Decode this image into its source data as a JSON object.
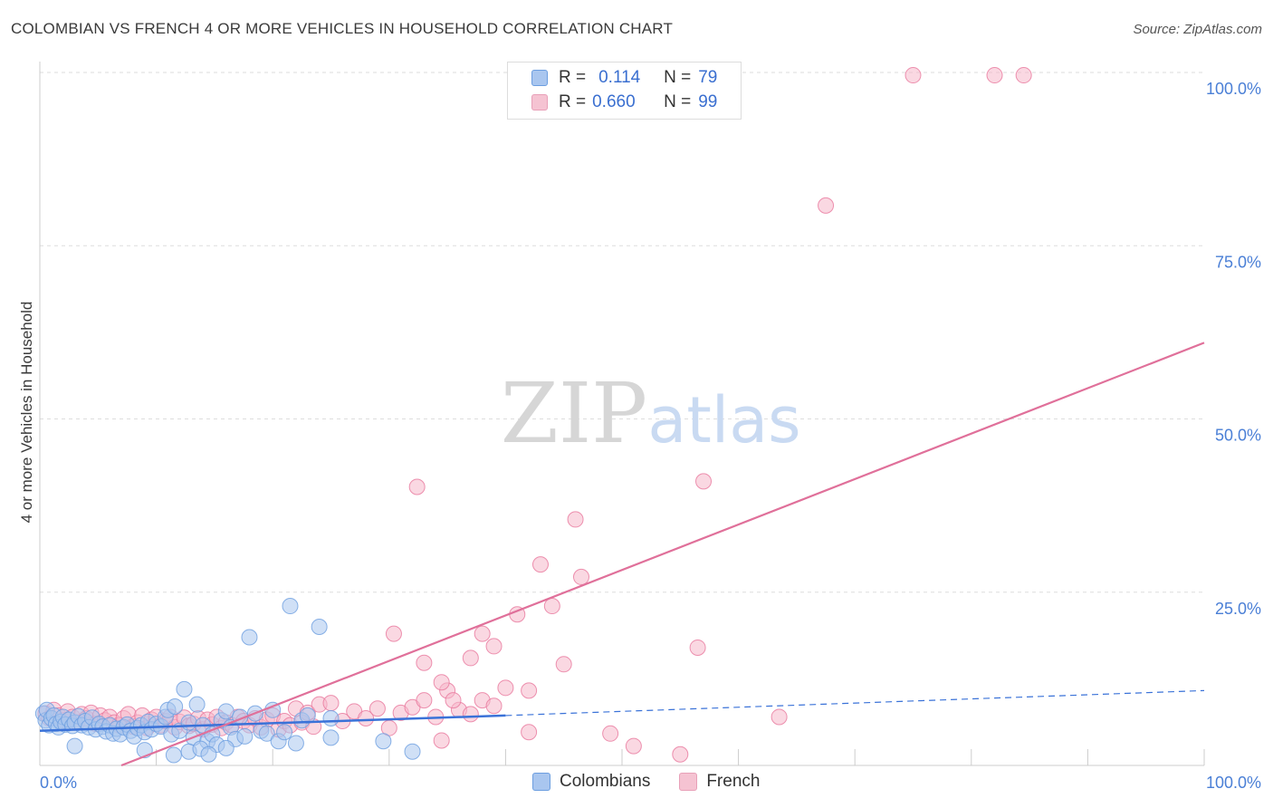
{
  "chart_data": {
    "type": "scatter",
    "title": "COLOMBIAN VS FRENCH 4 OR MORE VEHICLES IN HOUSEHOLD CORRELATION CHART",
    "source": "Source: ZipAtlas.com",
    "ylabel": "4 or more Vehicles in Household",
    "xlabel": "",
    "xlim": [
      0,
      100
    ],
    "ylim": [
      0,
      100
    ],
    "x_tick_labels": [
      "0.0%",
      "100.0%"
    ],
    "y_tick_labels": [
      "25.0%",
      "50.0%",
      "75.0%",
      "100.0%"
    ],
    "y_ticks": [
      25,
      50,
      75,
      100
    ],
    "watermark": {
      "part1": "ZIP",
      "part2": "atlas"
    },
    "legend": [
      {
        "r_label": "R =",
        "r_value": "0.114",
        "n_label": "N =",
        "n_value": "79"
      },
      {
        "r_label": "R =",
        "r_value": "0.660",
        "n_label": "N =",
        "n_value": "99"
      }
    ],
    "series": [
      {
        "name": "Colombians",
        "color": "#6c9ee0",
        "fill": "#a9c6ef",
        "trend": {
          "x0": 0,
          "y0": 5.0,
          "x1": 40,
          "y1": 7.2,
          "dash_to_x": 100,
          "dash_to_y": 10.8
        },
        "points": [
          [
            0.3,
            7.5
          ],
          [
            0.5,
            6.5
          ],
          [
            0.6,
            8.0
          ],
          [
            0.8,
            5.8
          ],
          [
            1.0,
            6.8
          ],
          [
            1.2,
            7.2
          ],
          [
            1.4,
            6.0
          ],
          [
            1.6,
            5.5
          ],
          [
            1.8,
            6.3
          ],
          [
            2.0,
            7.0
          ],
          [
            2.2,
            5.9
          ],
          [
            2.5,
            6.6
          ],
          [
            2.8,
            5.7
          ],
          [
            3.0,
            6.2
          ],
          [
            3.3,
            7.1
          ],
          [
            3.6,
            5.8
          ],
          [
            3.9,
            6.4
          ],
          [
            4.2,
            5.5
          ],
          [
            4.5,
            6.9
          ],
          [
            4.8,
            5.2
          ],
          [
            5.1,
            6.0
          ],
          [
            5.4,
            5.6
          ],
          [
            5.7,
            4.9
          ],
          [
            6.0,
            5.8
          ],
          [
            6.3,
            4.6
          ],
          [
            6.6,
            5.3
          ],
          [
            6.9,
            4.5
          ],
          [
            7.2,
            5.5
          ],
          [
            7.5,
            5.9
          ],
          [
            7.8,
            5.0
          ],
          [
            8.1,
            4.2
          ],
          [
            8.4,
            5.4
          ],
          [
            8.7,
            5.8
          ],
          [
            9.0,
            4.8
          ],
          [
            9.3,
            6.3
          ],
          [
            9.6,
            5.2
          ],
          [
            10.0,
            6.0
          ],
          [
            10.4,
            5.6
          ],
          [
            10.8,
            7.0
          ],
          [
            11.0,
            8.0
          ],
          [
            11.3,
            4.5
          ],
          [
            11.6,
            8.5
          ],
          [
            12.0,
            5.0
          ],
          [
            12.4,
            11.0
          ],
          [
            12.8,
            6.2
          ],
          [
            13.2,
            4.0
          ],
          [
            13.5,
            8.8
          ],
          [
            14.0,
            5.8
          ],
          [
            14.4,
            3.5
          ],
          [
            14.8,
            4.5
          ],
          [
            15.2,
            3.0
          ],
          [
            15.6,
            6.5
          ],
          [
            16.0,
            7.8
          ],
          [
            16.4,
            5.5
          ],
          [
            16.8,
            3.8
          ],
          [
            17.2,
            7.0
          ],
          [
            17.6,
            4.2
          ],
          [
            18.0,
            18.5
          ],
          [
            18.5,
            7.5
          ],
          [
            19.0,
            5.0
          ],
          [
            19.5,
            4.6
          ],
          [
            20.0,
            8.0
          ],
          [
            20.5,
            3.5
          ],
          [
            21.0,
            4.8
          ],
          [
            21.5,
            23.0
          ],
          [
            22.0,
            3.2
          ],
          [
            22.5,
            6.5
          ],
          [
            23.0,
            7.2
          ],
          [
            24.0,
            20.0
          ],
          [
            25.0,
            6.8
          ],
          [
            3.0,
            2.8
          ],
          [
            9.0,
            2.2
          ],
          [
            11.5,
            1.5
          ],
          [
            12.8,
            2.0
          ],
          [
            13.8,
            2.4
          ],
          [
            14.5,
            1.6
          ],
          [
            16.0,
            2.5
          ],
          [
            25.0,
            4.0
          ],
          [
            29.5,
            3.5
          ],
          [
            32.0,
            2.0
          ]
        ]
      },
      {
        "name": "French",
        "color": "#e8779c",
        "fill": "#f5b8cb",
        "trend": {
          "x0": 7,
          "y0": 0,
          "x1": 100,
          "y1": 61
        },
        "points": [
          [
            0.5,
            7.5
          ],
          [
            0.8,
            6.8
          ],
          [
            1.2,
            8.0
          ],
          [
            1.6,
            7.2
          ],
          [
            2.0,
            6.5
          ],
          [
            2.4,
            7.8
          ],
          [
            2.8,
            7.0
          ],
          [
            3.2,
            6.2
          ],
          [
            3.6,
            7.4
          ],
          [
            4.0,
            6.8
          ],
          [
            4.4,
            7.6
          ],
          [
            4.8,
            6.0
          ],
          [
            5.2,
            7.2
          ],
          [
            5.6,
            6.5
          ],
          [
            6.0,
            7.0
          ],
          [
            6.4,
            6.2
          ],
          [
            6.8,
            5.8
          ],
          [
            7.2,
            6.8
          ],
          [
            7.6,
            7.4
          ],
          [
            8.0,
            5.6
          ],
          [
            8.4,
            6.2
          ],
          [
            8.8,
            7.2
          ],
          [
            9.2,
            5.4
          ],
          [
            9.6,
            6.6
          ],
          [
            10.0,
            7.0
          ],
          [
            10.4,
            5.8
          ],
          [
            10.8,
            6.4
          ],
          [
            11.2,
            7.0
          ],
          [
            11.6,
            5.5
          ],
          [
            12.0,
            6.3
          ],
          [
            12.4,
            6.9
          ],
          [
            12.8,
            5.7
          ],
          [
            13.2,
            6.0
          ],
          [
            13.6,
            6.8
          ],
          [
            14.0,
            5.2
          ],
          [
            14.4,
            6.6
          ],
          [
            14.8,
            5.9
          ],
          [
            15.2,
            7.0
          ],
          [
            15.6,
            5.4
          ],
          [
            16.0,
            6.2
          ],
          [
            16.5,
            5.8
          ],
          [
            17.0,
            7.0
          ],
          [
            17.5,
            6.4
          ],
          [
            18.0,
            5.8
          ],
          [
            18.5,
            6.8
          ],
          [
            19.0,
            5.5
          ],
          [
            19.5,
            6.6
          ],
          [
            20.0,
            7.2
          ],
          [
            20.5,
            5.2
          ],
          [
            21.0,
            6.4
          ],
          [
            21.5,
            5.8
          ],
          [
            22.0,
            8.2
          ],
          [
            22.5,
            6.2
          ],
          [
            23.0,
            7.6
          ],
          [
            23.5,
            5.6
          ],
          [
            24.0,
            8.8
          ],
          [
            25.0,
            9.0
          ],
          [
            26.0,
            6.4
          ],
          [
            27.0,
            7.8
          ],
          [
            28.0,
            6.8
          ],
          [
            29.0,
            8.2
          ],
          [
            30.0,
            5.4
          ],
          [
            31.0,
            7.6
          ],
          [
            32.0,
            8.4
          ],
          [
            33.0,
            9.4
          ],
          [
            34.0,
            7.0
          ],
          [
            35.0,
            10.8
          ],
          [
            36.0,
            8.0
          ],
          [
            37.0,
            7.4
          ],
          [
            38.0,
            9.4
          ],
          [
            39.0,
            8.6
          ],
          [
            30.4,
            19.0
          ],
          [
            32.4,
            40.2
          ],
          [
            33.0,
            14.8
          ],
          [
            34.5,
            12.0
          ],
          [
            35.5,
            9.4
          ],
          [
            37.0,
            15.5
          ],
          [
            38.0,
            19.0
          ],
          [
            39.0,
            17.2
          ],
          [
            40.0,
            11.2
          ],
          [
            41.0,
            21.8
          ],
          [
            42.0,
            10.8
          ],
          [
            43.0,
            29.0
          ],
          [
            44.0,
            23.0
          ],
          [
            45.0,
            14.6
          ],
          [
            46.0,
            35.5
          ],
          [
            46.5,
            27.2
          ],
          [
            56.5,
            17.0
          ],
          [
            57.0,
            41.0
          ],
          [
            34.5,
            3.6
          ],
          [
            42.0,
            4.8
          ],
          [
            49.0,
            4.6
          ],
          [
            51.0,
            2.8
          ],
          [
            55.0,
            1.6
          ],
          [
            63.5,
            7.0
          ],
          [
            67.5,
            80.8
          ],
          [
            75.0,
            99.6
          ],
          [
            82.0,
            99.6
          ],
          [
            84.5,
            99.6
          ]
        ]
      }
    ]
  }
}
